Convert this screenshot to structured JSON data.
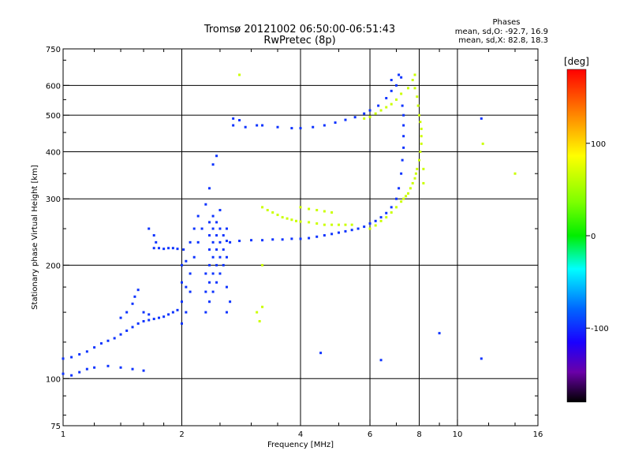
{
  "chart_data": {
    "type": "scatter",
    "title": "Tromsø 20121002 06:50:00-06:51:43",
    "subtitle": "RwPretec (8p)",
    "xlabel": "Frequency [MHz]",
    "ylabel": "Stationary phase Virtual Height [km]",
    "x_scale": "log",
    "y_scale": "log",
    "xlim": [
      1,
      16
    ],
    "ylim": [
      75,
      750
    ],
    "x_ticks": [
      1,
      2,
      4,
      6,
      8,
      10,
      16
    ],
    "x_tick_labels": [
      "1",
      "2",
      "4",
      "6",
      "8",
      "10",
      "16"
    ],
    "y_ticks": [
      75,
      100,
      200,
      300,
      400,
      500,
      600,
      750
    ],
    "y_tick_labels": [
      "75",
      "100",
      "200",
      "300",
      "400",
      "500",
      "600",
      "750"
    ],
    "x_grid": [
      2,
      4,
      6,
      8,
      10
    ],
    "y_grid": [
      100,
      200,
      300,
      400,
      500,
      600
    ],
    "info": {
      "heading": "Phases",
      "line_o": "mean, sd,O: -92.7, 16.9",
      "line_x": "mean, sd,X:  82.8, 18.3"
    },
    "colorbar": {
      "label": "[deg]",
      "ticks": [
        "100",
        "0",
        "-100"
      ],
      "tick_values": [
        100,
        0,
        -100
      ],
      "range": [
        -180,
        180
      ]
    },
    "series": [
      {
        "mode": "O",
        "phase_deg": -100,
        "points": [
          [
            1.0,
            113
          ],
          [
            1.05,
            114
          ],
          [
            1.1,
            116
          ],
          [
            1.15,
            118
          ],
          [
            1.2,
            121
          ],
          [
            1.25,
            124
          ],
          [
            1.3,
            126
          ],
          [
            1.35,
            128
          ],
          [
            1.4,
            131
          ],
          [
            1.45,
            134
          ],
          [
            1.5,
            137
          ],
          [
            1.55,
            140
          ],
          [
            1.6,
            142
          ],
          [
            1.65,
            143
          ],
          [
            1.7,
            144
          ],
          [
            1.75,
            145
          ],
          [
            1.8,
            146
          ],
          [
            1.85,
            148
          ],
          [
            1.9,
            150
          ],
          [
            1.95,
            152
          ],
          [
            1.0,
            103
          ],
          [
            1.05,
            102
          ],
          [
            1.1,
            104
          ],
          [
            1.15,
            106
          ],
          [
            1.2,
            107
          ],
          [
            1.3,
            108
          ],
          [
            1.4,
            107
          ],
          [
            1.5,
            106
          ],
          [
            1.6,
            105
          ],
          [
            1.4,
            145
          ],
          [
            1.45,
            150
          ],
          [
            1.5,
            158
          ],
          [
            1.52,
            165
          ],
          [
            1.55,
            172
          ],
          [
            1.6,
            150
          ],
          [
            1.65,
            148
          ],
          [
            1.7,
            222
          ],
          [
            1.75,
            222
          ],
          [
            1.8,
            221
          ],
          [
            1.85,
            222
          ],
          [
            1.9,
            222
          ],
          [
            1.95,
            221
          ],
          [
            1.65,
            250
          ],
          [
            1.7,
            240
          ],
          [
            1.72,
            230
          ],
          [
            2.0,
            140
          ],
          [
            2.0,
            160
          ],
          [
            2.0,
            180
          ],
          [
            2.0,
            200
          ],
          [
            2.02,
            220
          ],
          [
            2.05,
            150
          ],
          [
            2.05,
            175
          ],
          [
            2.05,
            205
          ],
          [
            2.1,
            170
          ],
          [
            2.1,
            190
          ],
          [
            2.1,
            230
          ],
          [
            2.15,
            210
          ],
          [
            2.15,
            250
          ],
          [
            2.2,
            230
          ],
          [
            2.2,
            270
          ],
          [
            2.25,
            250
          ],
          [
            2.3,
            290
          ],
          [
            2.35,
            320
          ],
          [
            2.4,
            370
          ],
          [
            2.45,
            390
          ],
          [
            2.3,
            150
          ],
          [
            2.3,
            170
          ],
          [
            2.3,
            190
          ],
          [
            2.35,
            160
          ],
          [
            2.35,
            180
          ],
          [
            2.35,
            200
          ],
          [
            2.35,
            220
          ],
          [
            2.35,
            240
          ],
          [
            2.35,
            260
          ],
          [
            2.4,
            170
          ],
          [
            2.4,
            190
          ],
          [
            2.4,
            210
          ],
          [
            2.4,
            230
          ],
          [
            2.4,
            250
          ],
          [
            2.4,
            270
          ],
          [
            2.45,
            180
          ],
          [
            2.45,
            200
          ],
          [
            2.45,
            220
          ],
          [
            2.45,
            240
          ],
          [
            2.45,
            260
          ],
          [
            2.5,
            190
          ],
          [
            2.5,
            210
          ],
          [
            2.5,
            230
          ],
          [
            2.5,
            250
          ],
          [
            2.5,
            280
          ],
          [
            2.55,
            200
          ],
          [
            2.55,
            220
          ],
          [
            2.55,
            240
          ],
          [
            2.6,
            150
          ],
          [
            2.6,
            175
          ],
          [
            2.6,
            210
          ],
          [
            2.6,
            250
          ],
          [
            2.65,
            160
          ],
          [
            2.65,
            230
          ],
          [
            2.6,
            232
          ],
          [
            2.8,
            232
          ],
          [
            3.0,
            233
          ],
          [
            3.2,
            233
          ],
          [
            3.4,
            234
          ],
          [
            3.6,
            234
          ],
          [
            3.8,
            235
          ],
          [
            4.0,
            235
          ],
          [
            4.2,
            236
          ],
          [
            4.4,
            238
          ],
          [
            4.6,
            240
          ],
          [
            4.8,
            242
          ],
          [
            5.0,
            244
          ],
          [
            5.2,
            246
          ],
          [
            5.4,
            248
          ],
          [
            5.6,
            250
          ],
          [
            5.8,
            253
          ],
          [
            6.0,
            258
          ],
          [
            6.2,
            262
          ],
          [
            6.4,
            268
          ],
          [
            6.6,
            275
          ],
          [
            6.8,
            285
          ],
          [
            7.0,
            300
          ],
          [
            7.1,
            320
          ],
          [
            7.2,
            350
          ],
          [
            7.25,
            380
          ],
          [
            7.3,
            410
          ],
          [
            7.3,
            440
          ],
          [
            7.3,
            470
          ],
          [
            7.3,
            500
          ],
          [
            7.25,
            530
          ],
          [
            2.7,
            490
          ],
          [
            2.8,
            485
          ],
          [
            3.2,
            470
          ],
          [
            3.5,
            465
          ],
          [
            3.8,
            462
          ],
          [
            4.0,
            462
          ],
          [
            4.3,
            465
          ],
          [
            4.6,
            470
          ],
          [
            4.9,
            478
          ],
          [
            5.2,
            486
          ],
          [
            5.5,
            494
          ],
          [
            5.8,
            505
          ],
          [
            6.0,
            515
          ],
          [
            6.3,
            530
          ],
          [
            6.6,
            555
          ],
          [
            6.8,
            580
          ],
          [
            7.0,
            600
          ],
          [
            7.2,
            630
          ],
          [
            2.7,
            470
          ],
          [
            2.9,
            465
          ],
          [
            3.1,
            470
          ],
          [
            6.8,
            620
          ],
          [
            7.1,
            640
          ],
          [
            4.5,
            117
          ],
          [
            6.4,
            112
          ],
          [
            11.5,
            113
          ],
          [
            11.5,
            490
          ],
          [
            9.0,
            132
          ]
        ]
      },
      {
        "mode": "X",
        "phase_deg": 80,
        "points": [
          [
            3.2,
            285
          ],
          [
            3.3,
            280
          ],
          [
            3.4,
            276
          ],
          [
            3.5,
            272
          ],
          [
            3.6,
            268
          ],
          [
            3.7,
            266
          ],
          [
            3.8,
            264
          ],
          [
            3.9,
            262
          ],
          [
            4.0,
            261
          ],
          [
            4.2,
            260
          ],
          [
            4.4,
            258
          ],
          [
            4.6,
            256
          ],
          [
            4.8,
            256
          ],
          [
            5.0,
            256
          ],
          [
            5.2,
            256
          ],
          [
            5.4,
            256
          ],
          [
            4.0,
            285
          ],
          [
            4.2,
            282
          ],
          [
            4.4,
            280
          ],
          [
            4.6,
            278
          ],
          [
            4.8,
            276
          ],
          [
            6.0,
            250
          ],
          [
            6.2,
            255
          ],
          [
            6.4,
            262
          ],
          [
            6.6,
            268
          ],
          [
            6.8,
            276
          ],
          [
            7.0,
            285
          ],
          [
            7.2,
            295
          ],
          [
            7.4,
            305
          ],
          [
            7.6,
            320
          ],
          [
            7.8,
            340
          ],
          [
            7.9,
            360
          ],
          [
            8.0,
            380
          ],
          [
            8.05,
            400
          ],
          [
            8.1,
            420
          ],
          [
            8.1,
            440
          ],
          [
            8.1,
            460
          ],
          [
            8.05,
            480
          ],
          [
            8.0,
            500
          ],
          [
            7.95,
            530
          ],
          [
            7.9,
            560
          ],
          [
            7.8,
            590
          ],
          [
            7.7,
            620
          ],
          [
            7.3,
            300
          ],
          [
            7.5,
            310
          ],
          [
            7.7,
            330
          ],
          [
            7.85,
            350
          ],
          [
            8.2,
            330
          ],
          [
            8.2,
            360
          ],
          [
            5.8,
            490
          ],
          [
            6.0,
            495
          ],
          [
            6.2,
            505
          ],
          [
            6.4,
            515
          ],
          [
            6.6,
            525
          ],
          [
            6.8,
            535
          ],
          [
            7.0,
            550
          ],
          [
            7.2,
            570
          ],
          [
            7.5,
            590
          ],
          [
            7.8,
            640
          ],
          [
            3.1,
            150
          ],
          [
            3.15,
            142
          ],
          [
            3.2,
            155
          ],
          [
            2.8,
            640
          ],
          [
            3.2,
            200
          ],
          [
            11.6,
            420
          ],
          [
            14.0,
            350
          ]
        ]
      }
    ]
  }
}
